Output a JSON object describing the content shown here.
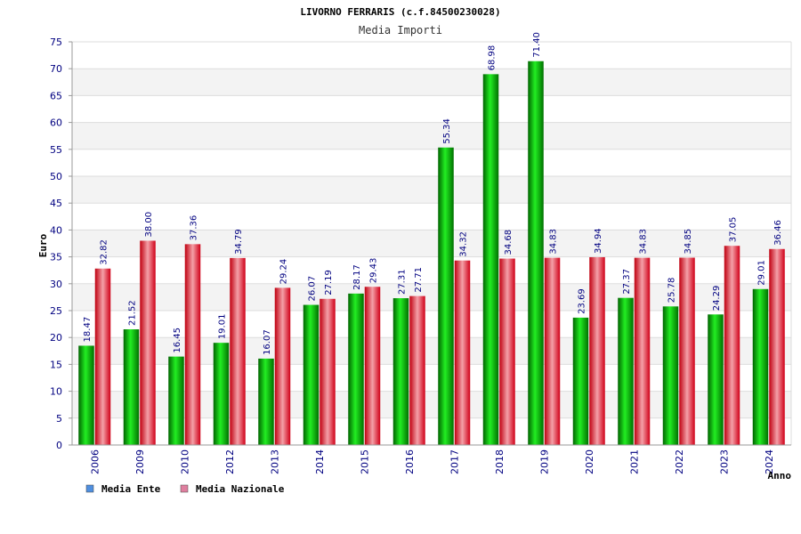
{
  "chart_data": {
    "type": "bar",
    "title": "LIVORNO FERRARIS (c.f.84500230028)",
    "subtitle": "Media Importi",
    "xlabel": "Anno",
    "ylabel": "Euro",
    "ylim": [
      0,
      75
    ],
    "yticks": [
      "0",
      "5",
      "10",
      "15",
      "20",
      "25",
      "30",
      "35",
      "40",
      "45",
      "50",
      "55",
      "60",
      "65",
      "70",
      "75"
    ],
    "grid": true,
    "legend_position": "bottom-left",
    "categories": [
      "2006",
      "2009",
      "2010",
      "2012",
      "2013",
      "2014",
      "2015",
      "2016",
      "2017",
      "2018",
      "2019",
      "2020",
      "2021",
      "2022",
      "2023",
      "2024"
    ],
    "series": [
      {
        "name": "Media Ente",
        "legend_color": "#4f8fdf",
        "color": "#00b000",
        "values": [
          18.47,
          21.52,
          16.45,
          19.01,
          16.07,
          26.07,
          28.17,
          27.31,
          55.34,
          68.98,
          71.4,
          23.69,
          27.37,
          25.78,
          24.29,
          29.01
        ],
        "labels": [
          "18.47",
          "21.52",
          "16.45",
          "19.01",
          "16.07",
          "26.07",
          "28.17",
          "27.31",
          "55.34",
          "68.98",
          "71.40",
          "23.69",
          "27.37",
          "25.78",
          "24.29",
          "29.01"
        ]
      },
      {
        "name": "Media Nazionale",
        "legend_color": "#df7f9f",
        "color": "#e8202a",
        "values": [
          32.82,
          38.0,
          37.36,
          34.79,
          29.24,
          27.19,
          29.43,
          27.71,
          34.32,
          34.68,
          34.83,
          34.94,
          34.83,
          34.85,
          37.05,
          36.46
        ],
        "labels": [
          "32.82",
          "38.00",
          "37.36",
          "34.79",
          "29.24",
          "27.19",
          "29.43",
          "27.71",
          "34.32",
          "34.68",
          "34.83",
          "34.94",
          "34.83",
          "34.85",
          "37.05",
          "36.46"
        ]
      }
    ]
  }
}
